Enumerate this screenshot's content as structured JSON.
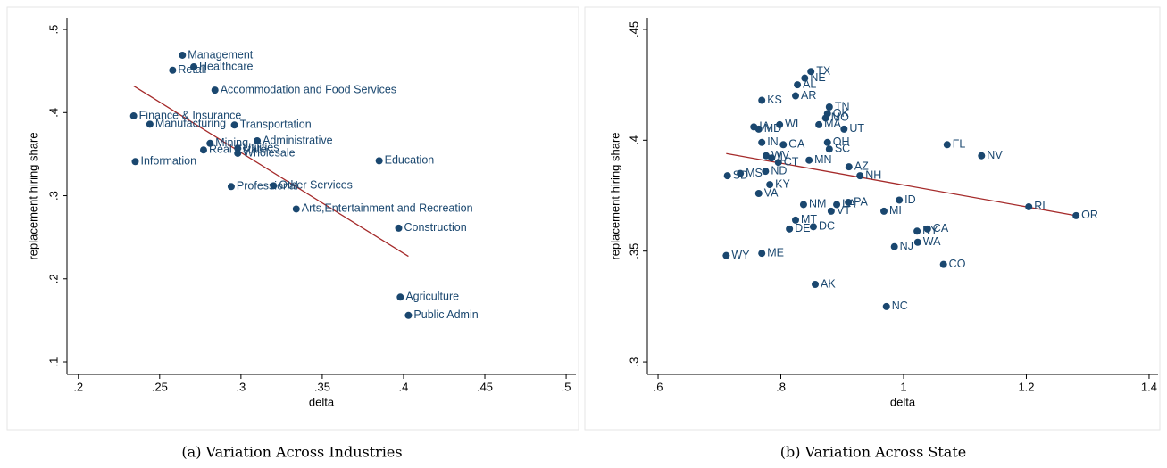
{
  "chart_data": [
    {
      "type": "scatter",
      "caption": "(a) Variation Across Industries",
      "x_label": "delta",
      "y_label": "replacement hiring share",
      "color": "#1a476f",
      "label_color": "#1a476f",
      "point_labels": [
        "Management",
        "Healthcare",
        "Retail",
        "Accommodation and Food Services",
        "Finance & Insurance",
        "Manufacturing",
        "Transportation",
        "Mining",
        "Administrative",
        "Utilities",
        "Real Estate",
        "Wholesale",
        "Information",
        "Education",
        "Professional",
        "Other Services",
        "Arts,Entertainment and Recreation",
        "Construction",
        "Agriculture",
        "Public Admin"
      ],
      "x": [
        0.264,
        0.271,
        0.258,
        0.284,
        0.234,
        0.244,
        0.296,
        0.281,
        0.31,
        0.298,
        0.277,
        0.298,
        0.235,
        0.385,
        0.294,
        0.32,
        0.334,
        0.397,
        0.398,
        0.403
      ],
      "y": [
        0.469,
        0.455,
        0.451,
        0.427,
        0.396,
        0.386,
        0.385,
        0.363,
        0.366,
        0.357,
        0.355,
        0.351,
        0.341,
        0.342,
        0.311,
        0.312,
        0.284,
        0.261,
        0.178,
        0.156
      ],
      "fit": {
        "x": [
          0.234,
          0.403
        ],
        "y": [
          0.432,
          0.227
        ],
        "color": "#a52a2a"
      },
      "xlim": [
        0.193,
        0.506
      ],
      "ylim": [
        0.085,
        0.514
      ],
      "xticks": [
        {
          "value": 0.2,
          "label": ".2"
        },
        {
          "value": 0.25,
          "label": ".25"
        },
        {
          "value": 0.3,
          "label": ".3"
        },
        {
          "value": 0.35,
          "label": ".35"
        },
        {
          "value": 0.4,
          "label": ".4"
        },
        {
          "value": 0.45,
          "label": ".45"
        },
        {
          "value": 0.5,
          "label": ".5"
        }
      ],
      "yticks": [
        {
          "value": 0.1,
          "label": ".1"
        },
        {
          "value": 0.2,
          "label": ".2"
        },
        {
          "value": 0.3,
          "label": ".3"
        },
        {
          "value": 0.4,
          "label": ".4"
        },
        {
          "value": 0.5,
          "label": ".5"
        }
      ]
    },
    {
      "type": "scatter",
      "caption": "(b) Variation Across State",
      "x_label": "delta",
      "y_label": "replacement hiring share",
      "color": "#1a476f",
      "label_color": "#1a476f",
      "point_labels": [
        "TX",
        "NE",
        "AL",
        "AR",
        "KS",
        "TN",
        "OK",
        "MO",
        "WI",
        "MA",
        "IA",
        "MD",
        "UT",
        "IN",
        "OH",
        "FL",
        "GA",
        "SC",
        "NV",
        "WV",
        "IL",
        "MN",
        "CT",
        "AZ",
        "ND",
        "MS",
        "NH",
        "SD",
        "KY",
        "VA",
        "ID",
        "PA",
        "NM",
        "LA",
        "RI",
        "VT",
        "MI",
        "OR",
        "MT",
        "CA",
        "NY",
        "DE",
        "DC",
        "WA",
        "NJ",
        "ME",
        "WY",
        "CO",
        "AK",
        "NC"
      ],
      "x": [
        0.849,
        0.839,
        0.827,
        0.824,
        0.769,
        0.879,
        0.876,
        0.873,
        0.798,
        0.862,
        0.756,
        0.764,
        0.903,
        0.769,
        0.876,
        1.071,
        0.804,
        0.879,
        1.127,
        0.776,
        0.785,
        0.846,
        0.796,
        0.911,
        0.775,
        0.734,
        0.929,
        0.713,
        0.782,
        0.764,
        0.993,
        0.91,
        0.837,
        0.891,
        1.204,
        0.882,
        0.968,
        1.281,
        0.824,
        1.039,
        1.022,
        0.814,
        0.853,
        1.023,
        0.985,
        0.769,
        0.711,
        1.065,
        0.856,
        0.972
      ],
      "y": [
        0.431,
        0.428,
        0.425,
        0.42,
        0.418,
        0.415,
        0.412,
        0.41,
        0.407,
        0.407,
        0.406,
        0.405,
        0.405,
        0.399,
        0.399,
        0.398,
        0.398,
        0.396,
        0.393,
        0.393,
        0.392,
        0.391,
        0.39,
        0.388,
        0.386,
        0.385,
        0.384,
        0.384,
        0.38,
        0.376,
        0.373,
        0.372,
        0.371,
        0.371,
        0.37,
        0.368,
        0.368,
        0.366,
        0.364,
        0.36,
        0.359,
        0.36,
        0.361,
        0.354,
        0.352,
        0.349,
        0.348,
        0.344,
        0.335,
        0.325
      ],
      "fit": {
        "x": [
          0.711,
          1.281
        ],
        "y": [
          0.394,
          0.366
        ],
        "color": "#a52a2a"
      },
      "xlim": [
        0.5825,
        1.4146
      ],
      "ylim": [
        0.2944,
        0.4552
      ],
      "xticks": [
        {
          "value": 0.6,
          "label": ".6"
        },
        {
          "value": 0.8,
          "label": ".8"
        },
        1,
        1.2,
        1.4
      ],
      "yticks": [
        {
          "value": 0.3,
          "label": ".3"
        },
        {
          "value": 0.35,
          "label": ".35"
        },
        {
          "value": 0.4,
          "label": ".4"
        },
        {
          "value": 0.45,
          "label": ".45"
        }
      ]
    }
  ]
}
